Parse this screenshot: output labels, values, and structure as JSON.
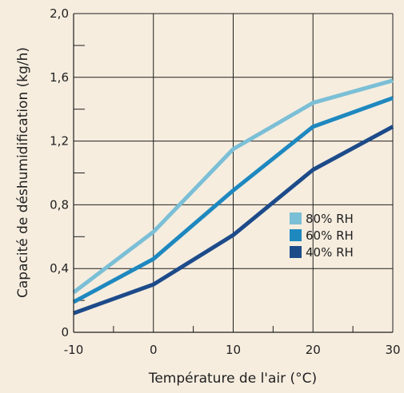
{
  "colors": {
    "background": "#f6eddf",
    "axis": "#1f1f1f",
    "grid": "#1f1f1f"
  },
  "chart_data": {
    "type": "line",
    "xlabel": "Température de l'air (°C)",
    "ylabel": "Capacité de déshumidification (kg/h)",
    "xlim": [
      -10,
      30
    ],
    "ylim": [
      0,
      2.0
    ],
    "x_ticks": [
      -10,
      0,
      10,
      20,
      30
    ],
    "x_tick_labels": [
      "-10",
      "0",
      "10",
      "20",
      "30"
    ],
    "y_ticks": [
      0,
      0.4,
      0.8,
      1.2,
      1.6,
      2.0
    ],
    "y_tick_labels": [
      "0",
      "0,4",
      "0,8",
      "1,2",
      "1,6",
      "2,0"
    ],
    "grid": true,
    "legend_position": "center-right",
    "series": [
      {
        "name": "80% RH",
        "color": "#7bbfd6",
        "x": [
          -10,
          0,
          10,
          20,
          30
        ],
        "y": [
          0.25,
          0.63,
          1.15,
          1.44,
          1.58
        ]
      },
      {
        "name": "60% RH",
        "color": "#1e88bf",
        "x": [
          -10,
          0,
          10,
          20,
          30
        ],
        "y": [
          0.19,
          0.46,
          0.89,
          1.29,
          1.47
        ]
      },
      {
        "name": "40% RH",
        "color": "#1d4b8a",
        "x": [
          -10,
          0,
          10,
          20,
          30
        ],
        "y": [
          0.12,
          0.3,
          0.61,
          1.02,
          1.29
        ]
      }
    ]
  }
}
